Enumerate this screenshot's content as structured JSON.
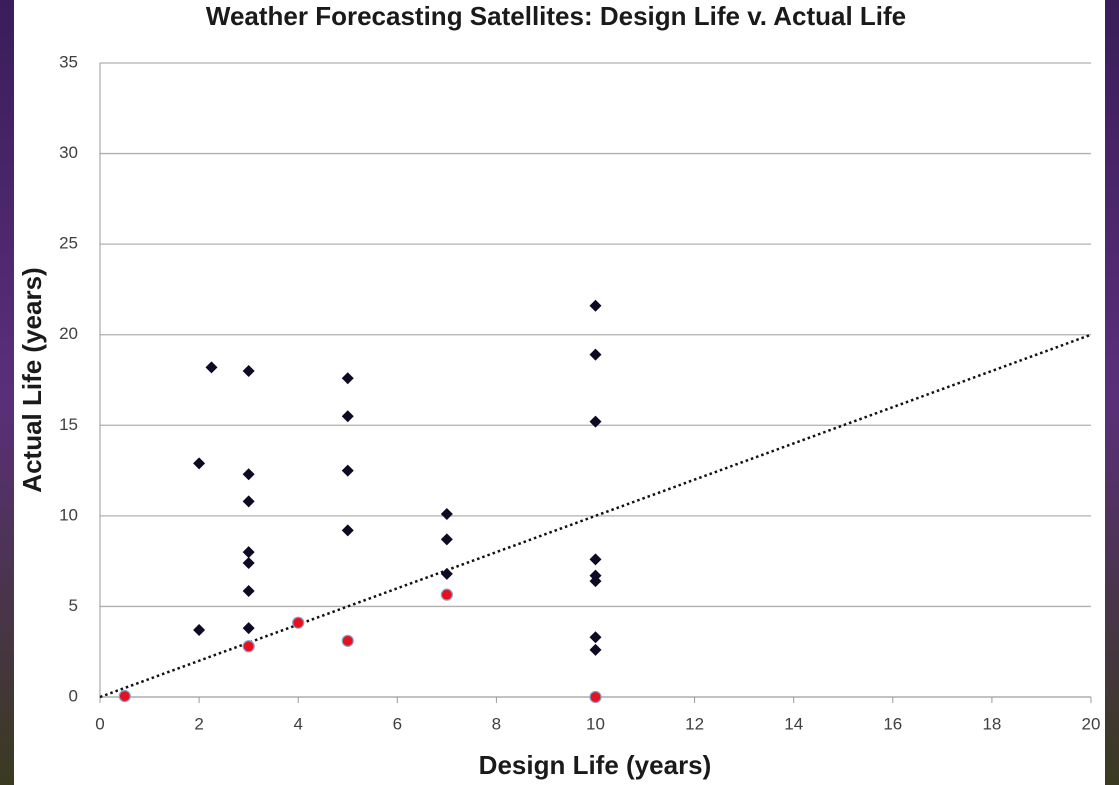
{
  "chart_data": {
    "type": "scatter",
    "title": "Weather Forecasting Satellites: Design Life v. Actual Life",
    "xlabel": "Design Life (years)",
    "ylabel": "Actual Life (years)",
    "xlim": [
      0,
      20
    ],
    "xticks": [
      0,
      2,
      4,
      6,
      8,
      10,
      12,
      14,
      16,
      18,
      20
    ],
    "ylim": [
      0,
      35
    ],
    "yticks": [
      0,
      5,
      10,
      15,
      20,
      25,
      30,
      35
    ],
    "grid": true,
    "series": [
      {
        "color": "#0d0a24",
        "marker": "diamond",
        "x": [
          2,
          2,
          2.25,
          3,
          3,
          3,
          3,
          3,
          3,
          3,
          5,
          5,
          5,
          5,
          7,
          7,
          7,
          10,
          10,
          10,
          10,
          10,
          10,
          10,
          10
        ],
        "values": [
          12.9,
          3.7,
          18.2,
          18.0,
          12.3,
          10.8,
          8.0,
          7.4,
          5.85,
          3.8,
          17.6,
          15.5,
          12.5,
          9.2,
          10.1,
          8.7,
          6.8,
          21.6,
          18.9,
          15.2,
          7.6,
          6.7,
          6.4,
          3.3,
          2.6
        ]
      },
      {
        "color": "#e8101c",
        "marker": "circle",
        "x": [
          0.5,
          3,
          4,
          5,
          7,
          10
        ],
        "values": [
          0.05,
          2.8,
          4.1,
          3.1,
          5.65,
          0
        ]
      }
    ],
    "reference_line": {
      "x": [
        0,
        20
      ],
      "values": [
        0,
        20
      ],
      "color": "#111111"
    }
  }
}
